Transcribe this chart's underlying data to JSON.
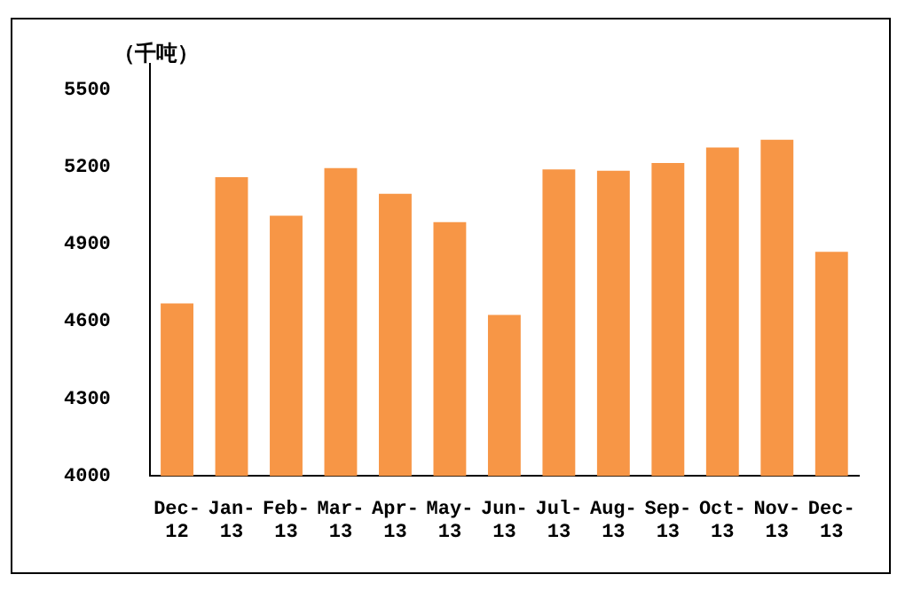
{
  "chart_data": {
    "type": "bar",
    "ylabel": "（千吨）",
    "categories": [
      "Dec-12",
      "Jan-13",
      "Feb-13",
      "Mar-13",
      "Apr-13",
      "May-13",
      "Jun-13",
      "Jul-13",
      "Aug-13",
      "Sep-13",
      "Oct-13",
      "Nov-13",
      "Dec-13"
    ],
    "values": [
      4670,
      5160,
      5010,
      5195,
      5095,
      4985,
      4625,
      5190,
      5185,
      5215,
      5275,
      5305,
      4870
    ],
    "color": "#f79646",
    "ylim": [
      4000,
      5600
    ],
    "yticks": [
      4000,
      4300,
      4600,
      4900,
      5200,
      5500
    ],
    "grid": false,
    "legend": false
  }
}
